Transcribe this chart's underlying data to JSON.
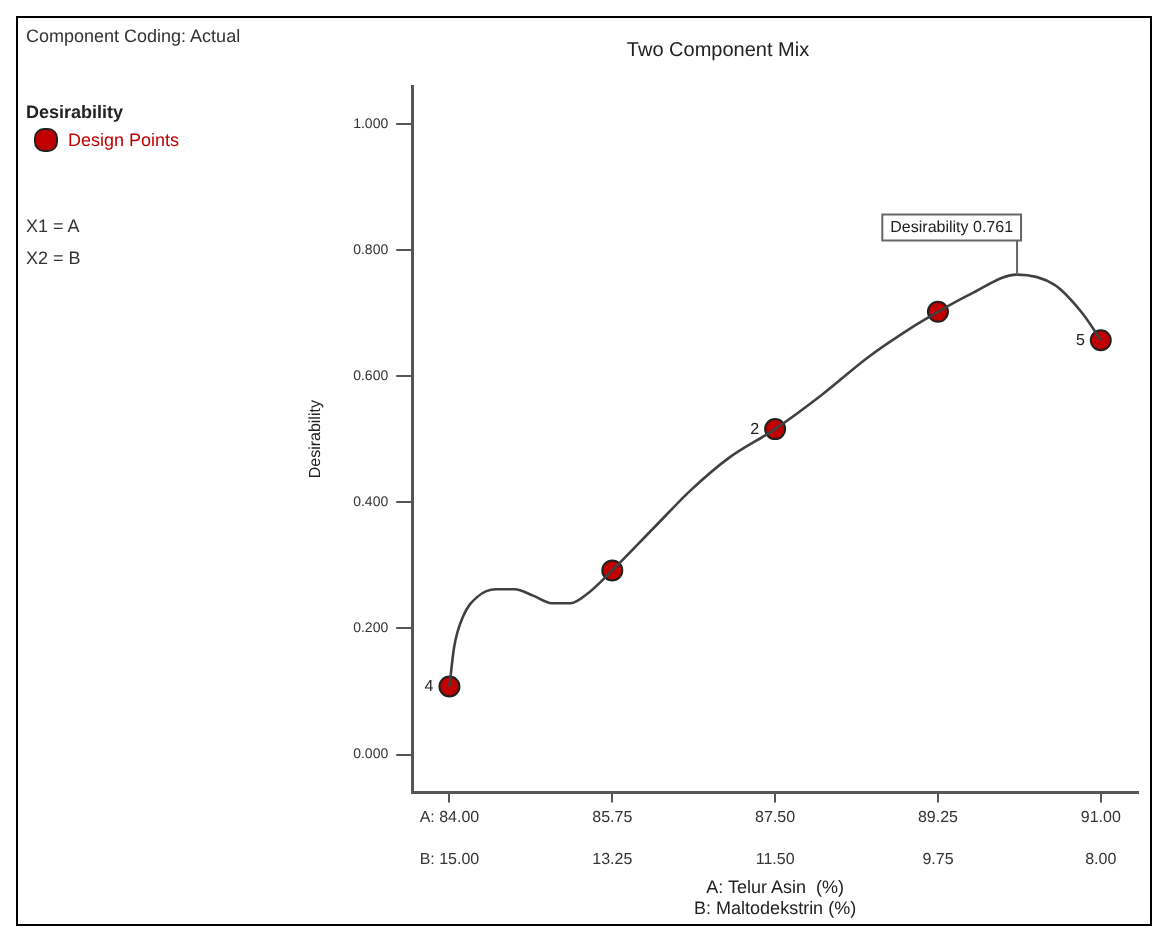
{
  "chart_data": {
    "type": "line",
    "title": "Two Component Mix",
    "xlabel": "A: Telur Asin  (%)",
    "x2label": "B: Maltodekstrin (%)",
    "ylabel": "Desirability",
    "legend_title": "Desirability",
    "legend": "top left",
    "grid": false,
    "line_style": "solid",
    "xlim": [
      83.6,
      91.4
    ],
    "xticks": [
      {
        "value": 84,
        "label": "A: 84.00"
      },
      {
        "value": 85.75,
        "label": "85.75"
      },
      {
        "value": 87.5,
        "label": "87.50"
      },
      {
        "value": 89.25,
        "label": "89.25"
      },
      {
        "value": 91,
        "label": "91.00"
      }
    ],
    "x2lim": [
      15.4,
      7.6
    ],
    "x2ticks": [
      {
        "value": 15,
        "label": "B: 15.00"
      },
      {
        "value": 13.25,
        "label": "13.25"
      },
      {
        "value": 11.5,
        "label": "11.50"
      },
      {
        "value": 9.75,
        "label": "9.75"
      },
      {
        "value": 8,
        "label": "8.00"
      }
    ],
    "ylim": [
      -0.06,
      1.06
    ],
    "yticks": [
      {
        "value": 0,
        "label": "0.000"
      },
      {
        "value": 0.2,
        "label": "0.200"
      },
      {
        "value": 0.4,
        "label": "0.400"
      },
      {
        "value": 0.6,
        "label": "0.600"
      },
      {
        "value": 0.8,
        "label": "0.800"
      },
      {
        "value": 1,
        "label": "1.000"
      }
    ],
    "series": [
      {
        "marker": "none",
        "color": "#404040",
        "x": [
          84.0,
          84.05,
          84.15,
          84.3,
          84.5,
          84.7,
          84.9,
          85.1,
          85.3,
          85.5,
          85.75,
          86.2,
          86.6,
          87.0,
          87.5,
          88.0,
          88.5,
          89.0,
          89.25,
          89.6,
          90.1,
          90.5,
          90.8,
          91.0
        ],
        "values": [
          0.108,
          0.17,
          0.22,
          0.25,
          0.262,
          0.262,
          0.252,
          0.24,
          0.24,
          0.257,
          0.292,
          0.36,
          0.42,
          0.47,
          0.516,
          0.57,
          0.63,
          0.68,
          0.702,
          0.73,
          0.761,
          0.745,
          0.7,
          0.657
        ]
      },
      {
        "type": "scatter",
        "marker": "circle",
        "name": "Design Points",
        "color": "#c00000",
        "x": [
          84,
          85.75,
          87.5,
          89.25,
          91
        ],
        "values": [
          0.108,
          0.292,
          0.516,
          0.702,
          0.657
        ]
      }
    ],
    "annotations": [
      "Component Coding: Actual",
      "X1 = A",
      "X2 = B",
      {
        "text": "4",
        "x": 84,
        "y": 0.108
      },
      {
        "text": "2",
        "x": 87.5,
        "y": 0.516
      },
      {
        "text": "5",
        "x": 91,
        "y": 0.657
      },
      {
        "text": "Desirability 0.761",
        "x": 90.1,
        "y": 0.761
      }
    ]
  }
}
